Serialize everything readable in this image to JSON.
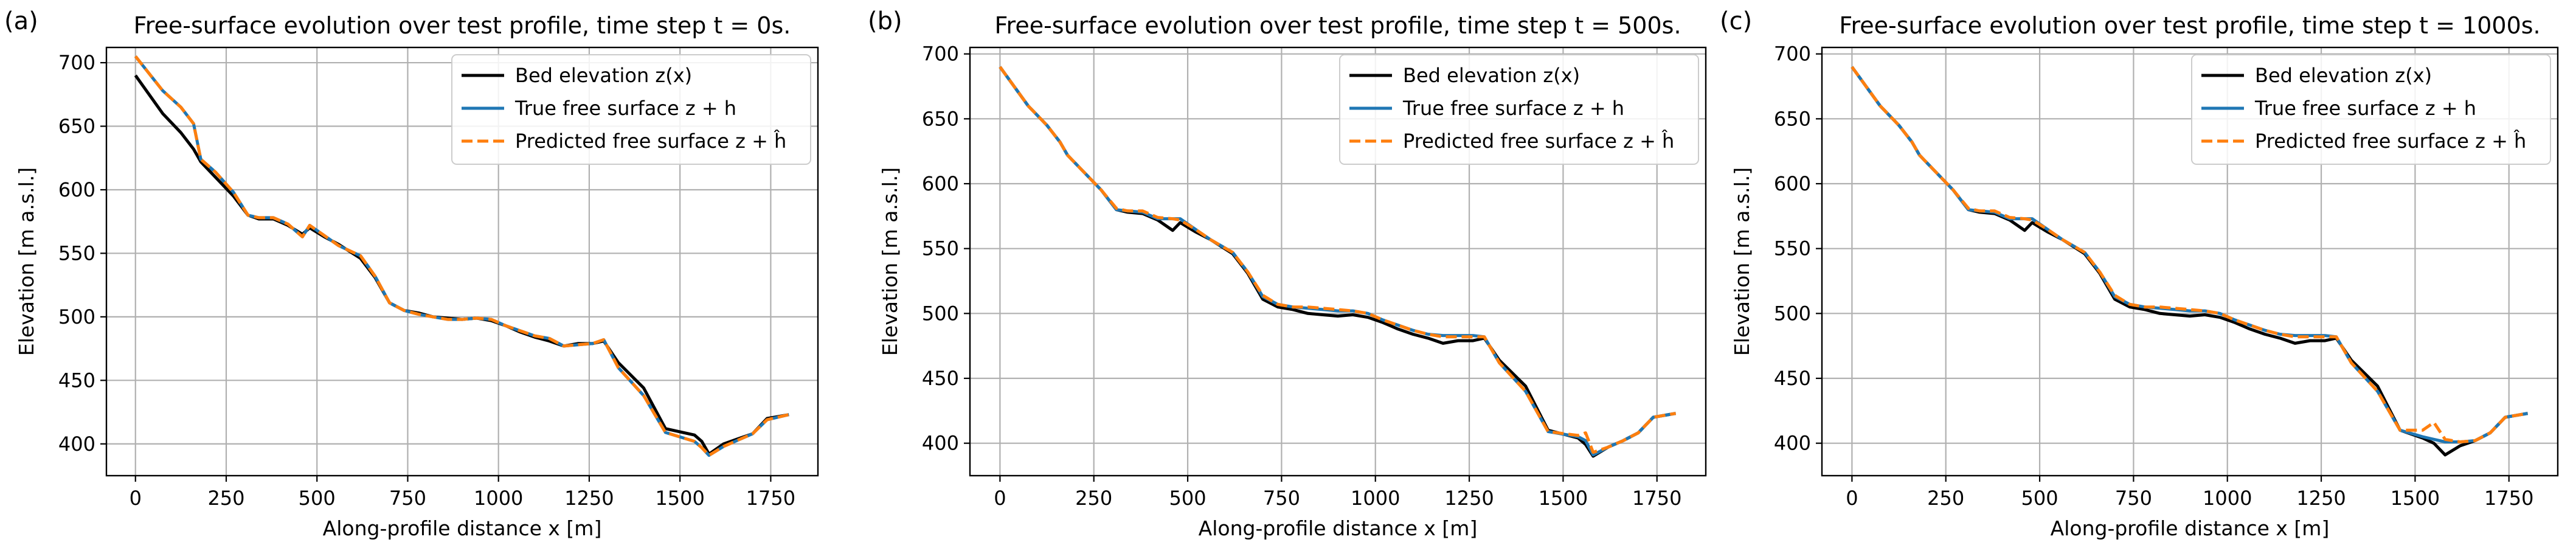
{
  "chart_data": [
    {
      "type": "line",
      "panel_label": "(a)",
      "title": "Free-surface evolution over test profile, time step t = 0s.",
      "xlabel": "Along-profile distance x [m]",
      "ylabel": "Elevation [m a.s.l.]",
      "xlim": [
        -80,
        1880
      ],
      "ylim": [
        375,
        712
      ],
      "xticks": [
        0,
        250,
        500,
        750,
        1000,
        1250,
        1500,
        1750
      ],
      "yticks": [
        400,
        450,
        500,
        550,
        600,
        650,
        700
      ],
      "grid": true,
      "legend_position": "top-right",
      "x": [
        0,
        75,
        125,
        160,
        180,
        220,
        270,
        310,
        340,
        380,
        420,
        460,
        480,
        520,
        560,
        620,
        660,
        700,
        740,
        780,
        820,
        860,
        900,
        940,
        980,
        1020,
        1060,
        1100,
        1140,
        1180,
        1220,
        1260,
        1290,
        1330,
        1400,
        1460,
        1540,
        1560,
        1580,
        1620,
        1660,
        1700,
        1740,
        1800
      ],
      "series": [
        {
          "name": "Bed elevation z(x)",
          "color": "#000000",
          "style": "solid",
          "values": [
            690,
            660,
            645,
            632,
            622,
            610,
            595,
            580,
            577,
            577,
            572,
            565,
            570,
            563,
            557,
            546,
            531,
            511,
            505,
            503,
            500,
            499,
            498,
            499,
            497,
            493,
            488,
            484,
            481,
            477,
            479,
            479,
            481,
            464,
            444,
            412,
            407,
            402,
            392,
            400,
            404,
            408,
            420,
            423
          ]
        },
        {
          "name": "True free surface z + h",
          "color": "#1f77b4",
          "style": "solid",
          "values": [
            705,
            678,
            665,
            652,
            624,
            614,
            598,
            580,
            578,
            578,
            573,
            563,
            572,
            564,
            556,
            548,
            532,
            511,
            505,
            502,
            500,
            498,
            498,
            499,
            498,
            493,
            489,
            485,
            483,
            477,
            478,
            479,
            482,
            460,
            438,
            409,
            402,
            397,
            391,
            398,
            403,
            408,
            419,
            423
          ]
        },
        {
          "name": "Predicted free surface z + ĥ",
          "color": "#ff7f0e",
          "style": "dashed",
          "values": [
            705,
            678,
            665,
            652,
            624,
            614,
            598,
            580,
            578,
            578,
            573,
            563,
            572,
            564,
            556,
            548,
            532,
            511,
            505,
            502,
            500,
            498,
            498,
            499,
            498,
            493,
            489,
            485,
            483,
            477,
            478,
            479,
            482,
            460,
            438,
            409,
            402,
            397,
            391,
            398,
            403,
            408,
            419,
            423
          ]
        }
      ]
    },
    {
      "type": "line",
      "panel_label": "(b)",
      "title": "Free-surface evolution over test profile, time step t = 500s.",
      "xlabel": "Along-profile distance x [m]",
      "ylabel": "Elevation [m a.s.l.]",
      "xlim": [
        -80,
        1880
      ],
      "ylim": [
        375,
        705
      ],
      "xticks": [
        0,
        250,
        500,
        750,
        1000,
        1250,
        1500,
        1750
      ],
      "yticks": [
        400,
        450,
        500,
        550,
        600,
        650,
        700
      ],
      "grid": true,
      "legend_position": "top-right",
      "x": [
        0,
        75,
        125,
        160,
        180,
        220,
        270,
        310,
        340,
        380,
        420,
        460,
        480,
        520,
        560,
        620,
        660,
        700,
        740,
        780,
        820,
        860,
        900,
        940,
        980,
        1020,
        1060,
        1100,
        1140,
        1180,
        1220,
        1260,
        1290,
        1330,
        1400,
        1460,
        1540,
        1560,
        1580,
        1620,
        1660,
        1700,
        1740,
        1800
      ],
      "series": [
        {
          "name": "Bed elevation z(x)",
          "color": "#000000",
          "style": "solid",
          "values": [
            690,
            660,
            645,
            632,
            622,
            610,
            595,
            580,
            578,
            577,
            572,
            564,
            570,
            563,
            557,
            546,
            531,
            511,
            505,
            503,
            500,
            499,
            498,
            499,
            497,
            493,
            488,
            484,
            481,
            477,
            479,
            479,
            481,
            464,
            444,
            410,
            404,
            399,
            390,
            397,
            402,
            408,
            420,
            423
          ]
        },
        {
          "name": "True free surface z + h",
          "color": "#1f77b4",
          "style": "solid",
          "values": [
            690,
            660,
            645,
            632,
            622,
            610,
            595,
            580,
            579,
            578,
            573,
            573,
            573,
            565,
            557,
            547,
            532,
            513,
            507,
            505,
            504,
            503,
            502,
            502,
            500,
            495,
            491,
            487,
            484,
            483,
            483,
            483,
            482,
            462,
            440,
            409,
            405,
            402,
            391,
            397,
            402,
            408,
            420,
            423
          ]
        },
        {
          "name": "Predicted free surface z + ĥ",
          "color": "#ff7f0e",
          "style": "dashed",
          "values": [
            690,
            660,
            645,
            632,
            622,
            610,
            595,
            581,
            579,
            579,
            574,
            573,
            572,
            565,
            557,
            547,
            532,
            514,
            507,
            505,
            505,
            504,
            503,
            502,
            500,
            495,
            491,
            487,
            484,
            482,
            482,
            482,
            482,
            462,
            440,
            409,
            406,
            408,
            393,
            397,
            402,
            408,
            420,
            423
          ]
        }
      ]
    },
    {
      "type": "line",
      "panel_label": "(c)",
      "title": "Free-surface evolution over test profile, time step t = 1000s.",
      "xlabel": "Along-profile distance x [m]",
      "ylabel": "Elevation [m a.s.l.]",
      "xlim": [
        -80,
        1880
      ],
      "ylim": [
        375,
        705
      ],
      "xticks": [
        0,
        250,
        500,
        750,
        1000,
        1250,
        1500,
        1750
      ],
      "yticks": [
        400,
        450,
        500,
        550,
        600,
        650,
        700
      ],
      "grid": true,
      "legend_position": "top-right",
      "x": [
        0,
        75,
        125,
        160,
        180,
        220,
        270,
        310,
        340,
        380,
        420,
        460,
        480,
        520,
        560,
        620,
        660,
        700,
        740,
        780,
        820,
        860,
        900,
        940,
        980,
        1020,
        1060,
        1100,
        1140,
        1180,
        1220,
        1260,
        1290,
        1330,
        1400,
        1460,
        1520,
        1550,
        1580,
        1620,
        1660,
        1700,
        1740,
        1800
      ],
      "series": [
        {
          "name": "Bed elevation z(x)",
          "color": "#000000",
          "style": "solid",
          "values": [
            690,
            660,
            645,
            632,
            622,
            610,
            595,
            580,
            578,
            577,
            572,
            564,
            570,
            563,
            557,
            546,
            531,
            511,
            505,
            503,
            500,
            499,
            498,
            499,
            497,
            493,
            488,
            484,
            481,
            477,
            479,
            479,
            481,
            464,
            444,
            410,
            404,
            400,
            391,
            398,
            402,
            408,
            420,
            423
          ]
        },
        {
          "name": "True free surface z + h",
          "color": "#1f77b4",
          "style": "solid",
          "values": [
            690,
            660,
            645,
            632,
            622,
            610,
            595,
            580,
            579,
            578,
            573,
            573,
            573,
            565,
            557,
            547,
            532,
            513,
            507,
            505,
            504,
            503,
            502,
            502,
            500,
            495,
            491,
            487,
            484,
            483,
            483,
            483,
            482,
            462,
            440,
            410,
            405,
            403,
            401,
            401,
            402,
            408,
            420,
            423
          ]
        },
        {
          "name": "Predicted free surface z + ĥ",
          "color": "#ff7f0e",
          "style": "dashed",
          "values": [
            690,
            660,
            645,
            632,
            622,
            610,
            595,
            581,
            579,
            579,
            574,
            573,
            572,
            565,
            557,
            547,
            532,
            514,
            507,
            505,
            505,
            504,
            503,
            502,
            500,
            495,
            491,
            487,
            484,
            482,
            482,
            482,
            482,
            462,
            440,
            410,
            410,
            416,
            403,
            401,
            402,
            408,
            420,
            423
          ]
        }
      ]
    }
  ]
}
